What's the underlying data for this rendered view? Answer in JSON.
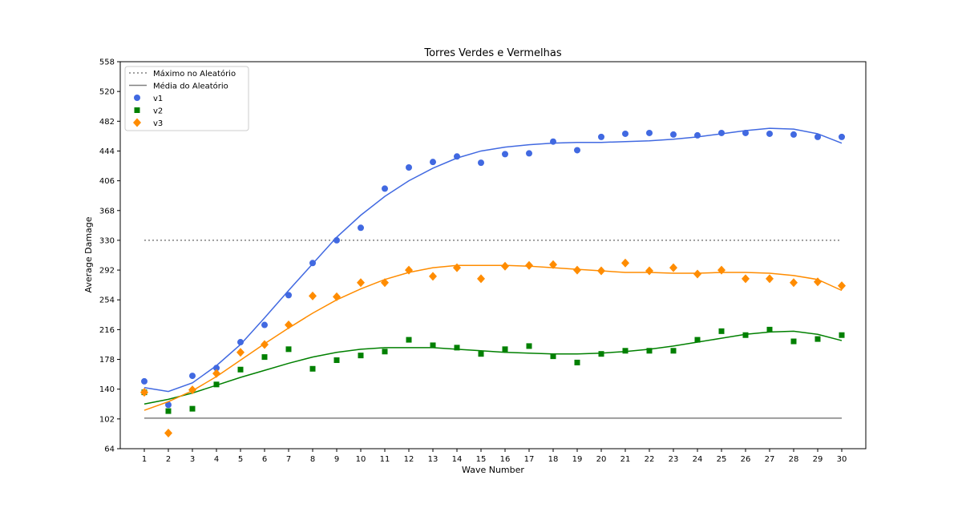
{
  "chart_data": {
    "type": "scatter",
    "title": "Torres Verdes e Vermelhas",
    "xlabel": "Wave Number",
    "ylabel": "Average Damage",
    "xlim": [
      0,
      31
    ],
    "ylim": [
      64,
      558
    ],
    "x_ticks": [
      1,
      2,
      3,
      4,
      5,
      6,
      7,
      8,
      9,
      10,
      11,
      12,
      13,
      14,
      15,
      16,
      17,
      18,
      19,
      20,
      21,
      22,
      23,
      24,
      25,
      26,
      27,
      28,
      29,
      30
    ],
    "y_ticks": [
      64,
      102,
      140,
      178,
      216,
      254,
      292,
      330,
      368,
      406,
      444,
      482,
      520,
      558
    ],
    "grid": false,
    "legend_position": "upper-left",
    "reference_lines": [
      {
        "name": "Máximo no Aleatório",
        "value": 330,
        "style": "dotted",
        "color": "#808080"
      },
      {
        "name": "Média do Aleatório",
        "value": 103,
        "style": "solid",
        "color": "#808080"
      }
    ],
    "x": [
      1,
      2,
      3,
      4,
      5,
      6,
      7,
      8,
      9,
      10,
      11,
      12,
      13,
      14,
      15,
      16,
      17,
      18,
      19,
      20,
      21,
      22,
      23,
      24,
      25,
      26,
      27,
      28,
      29,
      30
    ],
    "series": [
      {
        "name": "v1",
        "marker": "circle",
        "color": "#4169e1",
        "values": [
          150,
          120,
          157,
          167,
          200,
          222,
          260,
          301,
          330,
          346,
          396,
          423,
          430,
          437,
          429,
          440,
          441,
          456,
          445,
          462,
          466,
          467,
          465,
          464,
          467,
          467,
          466,
          465,
          462,
          462
        ],
        "trend": [
          142,
          137,
          148,
          170,
          197,
          231,
          266,
          300,
          334,
          362,
          386,
          406,
          422,
          435,
          444,
          449,
          452,
          454,
          455,
          455,
          456,
          457,
          459,
          462,
          466,
          470,
          473,
          472,
          466,
          454
        ]
      },
      {
        "name": "v2",
        "marker": "square",
        "color": "#008000",
        "values": [
          136,
          112,
          115,
          146,
          165,
          181,
          191,
          166,
          177,
          183,
          188,
          203,
          196,
          193,
          185,
          191,
          195,
          182,
          174,
          185,
          189,
          189,
          189,
          203,
          214,
          209,
          216,
          201,
          204,
          209
        ],
        "trend": [
          121,
          127,
          135,
          145,
          155,
          164,
          173,
          181,
          187,
          191,
          193,
          193,
          193,
          191,
          189,
          187,
          186,
          185,
          185,
          186,
          188,
          191,
          195,
          200,
          205,
          210,
          213,
          214,
          210,
          202
        ]
      },
      {
        "name": "v3",
        "marker": "diamond",
        "color": "#ff8c00",
        "values": [
          136,
          84,
          139,
          160,
          187,
          197,
          222,
          259,
          258,
          276,
          276,
          292,
          284,
          295,
          281,
          297,
          298,
          299,
          292,
          291,
          301,
          291,
          295,
          287,
          292,
          281,
          281,
          276,
          277,
          272
        ],
        "trend": [
          113,
          124,
          138,
          156,
          177,
          198,
          218,
          237,
          254,
          268,
          280,
          289,
          295,
          298,
          298,
          298,
          297,
          295,
          293,
          291,
          289,
          289,
          288,
          288,
          289,
          289,
          288,
          285,
          280,
          266
        ]
      }
    ]
  }
}
